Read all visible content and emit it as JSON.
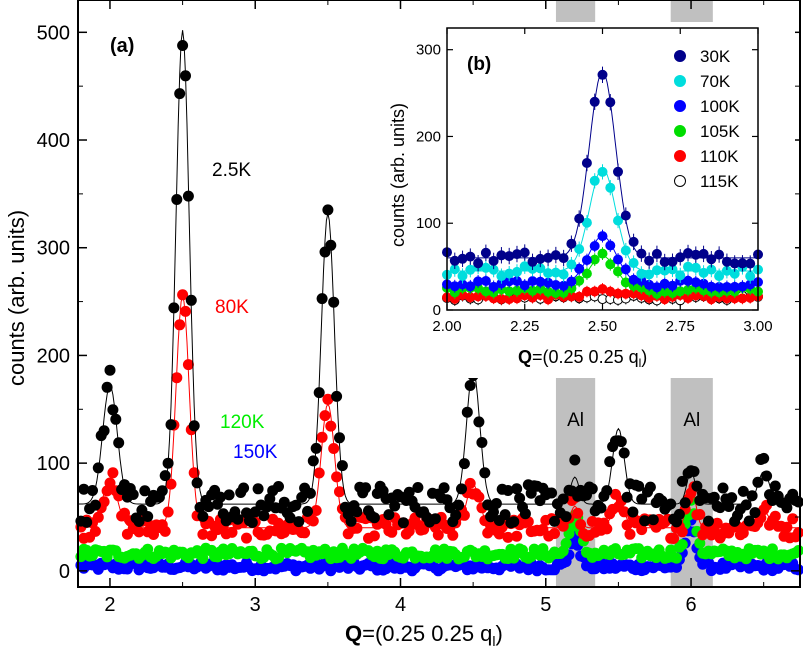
{
  "chart_data": [
    {
      "id": "main",
      "type": "scatter",
      "panel_label": "(a)",
      "xlabel_bold": "Q",
      "xlabel_rest": "=(0.25  0.25  q",
      "xlabel_sub": "l",
      "xlabel_close": ")",
      "ylabel": "counts (arb. units)",
      "xlim": [
        1.78,
        6.75
      ],
      "ylim": [
        -15,
        530
      ],
      "xticks": [
        2,
        3,
        4,
        5,
        6
      ],
      "xtick_labels": [
        "2",
        "3",
        "4",
        "5",
        "6"
      ],
      "yticks": [
        0,
        100,
        200,
        300,
        400,
        500
      ],
      "ytick_labels": [
        "0",
        "100",
        "200",
        "300",
        "400",
        "500"
      ],
      "shaded_bands": [
        {
          "x0": 5.07,
          "x1": 5.34,
          "label": "Al"
        },
        {
          "x0": 5.86,
          "x1": 6.15,
          "label": "Al"
        }
      ],
      "series": [
        {
          "name": "2.5K",
          "color": "#000000",
          "baseline": 62,
          "noise": 18,
          "fit_line": true,
          "peaks": [
            {
              "x": 2.0,
              "h": 110,
              "w": 0.05
            },
            {
              "x": 2.5,
              "h": 440,
              "w": 0.045
            },
            {
              "x": 3.5,
              "h": 270,
              "w": 0.045
            },
            {
              "x": 4.5,
              "h": 125,
              "w": 0.045
            },
            {
              "x": 5.2,
              "h": 25,
              "w": 0.03
            },
            {
              "x": 5.5,
              "h": 70,
              "w": 0.04
            },
            {
              "x": 6.0,
              "h": 30,
              "w": 0.03
            },
            {
              "x": 6.5,
              "h": 30,
              "w": 0.04
            }
          ]
        },
        {
          "name": "80K",
          "color": "#ff0000",
          "baseline": 40,
          "noise": 10,
          "fit_line": true,
          "peaks": [
            {
              "x": 2.0,
              "h": 45,
              "w": 0.05
            },
            {
              "x": 2.5,
              "h": 215,
              "w": 0.045
            },
            {
              "x": 3.5,
              "h": 115,
              "w": 0.045
            },
            {
              "x": 4.5,
              "h": 40,
              "w": 0.045
            },
            {
              "x": 5.2,
              "h": 20,
              "w": 0.03
            },
            {
              "x": 5.5,
              "h": 25,
              "w": 0.04
            },
            {
              "x": 6.0,
              "h": 40,
              "w": 0.03
            },
            {
              "x": 6.5,
              "h": 15,
              "w": 0.04
            }
          ]
        },
        {
          "name": "120K",
          "color": "#00ee00",
          "baseline": 16,
          "noise": 5,
          "fit_line": false,
          "peaks": [
            {
              "x": 5.2,
              "h": 35,
              "w": 0.035
            },
            {
              "x": 6.0,
              "h": 45,
              "w": 0.035
            }
          ]
        },
        {
          "name": "150K",
          "color": "#0000ff",
          "baseline": 4,
          "noise": 4,
          "fit_line": false,
          "peaks": [
            {
              "x": 5.2,
              "h": 25,
              "w": 0.035
            },
            {
              "x": 6.0,
              "h": 40,
              "w": 0.035
            }
          ]
        }
      ],
      "series_labels": [
        "2.5K",
        "80K",
        "120K",
        "150K"
      ]
    },
    {
      "id": "inset",
      "type": "scatter",
      "panel_label": "(b)",
      "xlabel_bold": "Q",
      "xlabel_rest": "=(0.25  0.25  q",
      "xlabel_sub": "l",
      "xlabel_close": ")",
      "ylabel": "counts (arb. units)",
      "xlim": [
        2.0,
        3.0
      ],
      "ylim": [
        0,
        325
      ],
      "xticks": [
        2.0,
        2.25,
        2.5,
        2.75,
        3.0
      ],
      "xtick_labels": [
        "2.00",
        "2.25",
        "2.50",
        "2.75",
        "3.00"
      ],
      "yticks": [
        0,
        100,
        200,
        300
      ],
      "ytick_labels": [
        "0",
        "100",
        "200",
        "300"
      ],
      "legend_position": "top-right",
      "series": [
        {
          "name": "30K",
          "color": "#00008b",
          "fill": "#00008b",
          "baseline": 60,
          "noise": 7,
          "peak_x": 2.5,
          "peak_h": 215,
          "w": 0.042
        },
        {
          "name": "70K",
          "color": "#00dddd",
          "fill": "#00dddd",
          "baseline": 45,
          "noise": 6,
          "peak_x": 2.5,
          "peak_h": 118,
          "w": 0.042
        },
        {
          "name": "100K",
          "color": "#0000ff",
          "fill": "#0000ff",
          "baseline": 30,
          "noise": 4,
          "peak_x": 2.5,
          "peak_h": 55,
          "w": 0.045
        },
        {
          "name": "105K",
          "color": "#00dd00",
          "fill": "#00dd00",
          "baseline": 22,
          "noise": 4,
          "peak_x": 2.5,
          "peak_h": 40,
          "w": 0.045
        },
        {
          "name": "110K",
          "color": "#ff0000",
          "fill": "#ff0000",
          "baseline": 15,
          "noise": 3,
          "peak_x": 2.5,
          "peak_h": 10,
          "w": 0.05
        },
        {
          "name": "115K",
          "color": "#000000",
          "fill": "#ffffff",
          "baseline": 14,
          "noise": 3,
          "peak_x": 2.5,
          "peak_h": 0,
          "w": 0.05
        }
      ]
    }
  ]
}
